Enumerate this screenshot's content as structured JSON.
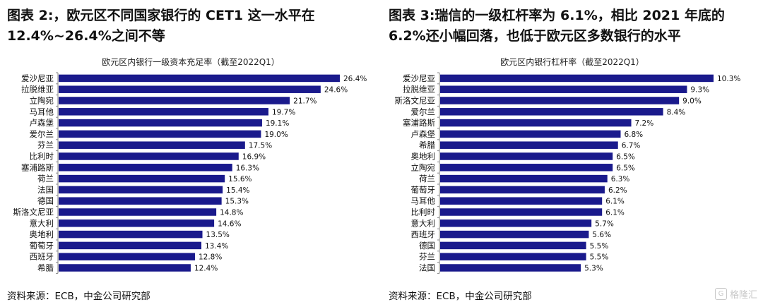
{
  "figure2": {
    "title": "图表 2:，欧元区不同国家银行的 CET1 这一水平在 12.4%~26.4%之间不等",
    "source": "资料来源：ECB，中金公司研究部"
  },
  "figure3": {
    "title": "图表 3:瑞信的一级杠杆率为 6.1%，相比 2021 年底的 6.2%还小幅回落，也低于欧元区多数银行的水平",
    "source": "资料来源：ECB，中金公司研究部"
  },
  "watermark": {
    "text": "格隆汇",
    "icon": "g-logo-icon"
  },
  "colors": {
    "bar": "#1a1a8c",
    "axis": "#888888"
  },
  "chart_data": [
    {
      "type": "bar",
      "orientation": "horizontal",
      "title": "欧元区内银行一级资本充足率（截至2022Q1）",
      "categories": [
        "爱沙尼亚",
        "拉脱维亚",
        "立陶宛",
        "马耳他",
        "卢森堡",
        "爱尔兰",
        "芬兰",
        "比利时",
        "塞浦路斯",
        "荷兰",
        "法国",
        "德国",
        "斯洛文尼亚",
        "意大利",
        "奥地利",
        "葡萄牙",
        "西班牙",
        "希腊"
      ],
      "values": [
        26.4,
        24.6,
        21.7,
        19.7,
        19.1,
        19.0,
        17.5,
        16.9,
        16.3,
        15.6,
        15.4,
        15.3,
        14.8,
        14.6,
        13.5,
        13.4,
        12.8,
        12.4
      ],
      "labels": [
        "26.4%",
        "24.6%",
        "21.7%",
        "19.7%",
        "19.1%",
        "19.0%",
        "17.5%",
        "16.9%",
        "16.3%",
        "15.6%",
        "15.4%",
        "15.3%",
        "14.8%",
        "14.6%",
        "13.5%",
        "13.4%",
        "12.8%",
        "12.4%"
      ],
      "unit": "%",
      "xlim": [
        0,
        26.4
      ],
      "grid": false,
      "legend": "none"
    },
    {
      "type": "bar",
      "orientation": "horizontal",
      "title": "欧元区内银行杠杆率（截至2022Q1）",
      "categories": [
        "爱沙尼亚",
        "拉脱维亚",
        "斯洛文尼亚",
        "爱尔兰",
        "塞浦路斯",
        "卢森堡",
        "希腊",
        "奥地利",
        "立陶宛",
        "荷兰",
        "葡萄牙",
        "马耳他",
        "比利时",
        "意大利",
        "西班牙",
        "德国",
        "芬兰",
        "法国"
      ],
      "values": [
        10.3,
        9.3,
        9.0,
        8.4,
        7.2,
        6.8,
        6.7,
        6.5,
        6.5,
        6.3,
        6.2,
        6.1,
        6.1,
        5.7,
        5.6,
        5.5,
        5.5,
        5.3
      ],
      "labels": [
        "10.3%",
        "9.3%",
        "9.0%",
        "8.4%",
        "7.2%",
        "6.8%",
        "6.7%",
        "6.5%",
        "6.5%",
        "6.3%",
        "6.2%",
        "6.1%",
        "6.1%",
        "5.7%",
        "5.6%",
        "5.5%",
        "5.5%",
        "5.3%"
      ],
      "unit": "%",
      "xlim": [
        0,
        10.3
      ],
      "grid": false,
      "legend": "none"
    }
  ]
}
